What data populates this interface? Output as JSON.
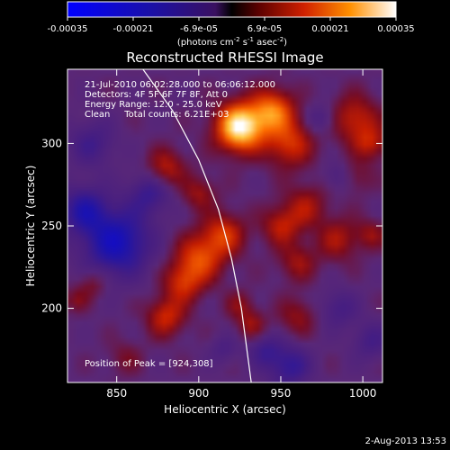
{
  "colorbar": {
    "ticks": [
      "-0.00035",
      "-0.00021",
      "-6.9e-05",
      "6.9e-05",
      "0.00021",
      "0.00035"
    ],
    "units_main": "(photons cm",
    "units_s": " s",
    "units_asec": " asec",
    "units_close": ")",
    "exp_minus2": "-2",
    "exp_minus1": "-1",
    "exp_minus2b": "-2"
  },
  "plot": {
    "title": "Reconstructed RHESSI Image",
    "xlabel": "Heliocentric X (arcsec)",
    "ylabel": "Heliocentric Y (arcsec)",
    "xticks": [
      "850",
      "900",
      "950",
      "1000"
    ],
    "yticks": [
      "200",
      "250",
      "300"
    ],
    "info_lines": [
      "21-Jul-2010 06:02:28.000 to 06:06:12.000",
      "Detectors: 4F 5F 6F 7F 8F, Att 0",
      "Energy Range: 12.0 - 25.0 keV",
      "Clean     Total counts: 6.21E+03"
    ],
    "peak": "Position of Peak = [924,308]"
  },
  "footer": {
    "timestamp": "2-Aug-2013 13:53"
  },
  "colors": {
    "background": "#000000",
    "axis": "#ffffff",
    "limb": "#ffffff"
  },
  "chart_data": {
    "type": "heatmap",
    "title": "Reconstructed RHESSI Image",
    "xlabel": "Heliocentric X (arcsec)",
    "ylabel": "Heliocentric Y (arcsec)",
    "xlim": [
      820,
      1012
    ],
    "ylim": [
      155,
      345
    ],
    "clim": [
      -0.00035,
      0.00035
    ],
    "peak": [
      924,
      308
    ],
    "blobs": [
      {
        "x": 925,
        "y": 310,
        "v": 0.00036,
        "s": 10
      },
      {
        "x": 945,
        "y": 320,
        "v": 0.00022,
        "s": 9
      },
      {
        "x": 955,
        "y": 300,
        "v": 0.00016,
        "s": 10
      },
      {
        "x": 995,
        "y": 315,
        "v": 0.00014,
        "s": 10
      },
      {
        "x": 1005,
        "y": 300,
        "v": 0.00012,
        "s": 7
      },
      {
        "x": 900,
        "y": 230,
        "v": 0.00018,
        "s": 10
      },
      {
        "x": 915,
        "y": 245,
        "v": 0.00016,
        "s": 9
      },
      {
        "x": 890,
        "y": 215,
        "v": 0.00014,
        "s": 8
      },
      {
        "x": 950,
        "y": 250,
        "v": 0.00013,
        "s": 8
      },
      {
        "x": 965,
        "y": 262,
        "v": 0.00011,
        "s": 9
      },
      {
        "x": 985,
        "y": 242,
        "v": 0.00011,
        "s": 9
      },
      {
        "x": 960,
        "y": 228,
        "v": 0.0001,
        "s": 8
      },
      {
        "x": 880,
        "y": 195,
        "v": 0.00015,
        "s": 8
      },
      {
        "x": 932,
        "y": 190,
        "v": 0.0001,
        "s": 6
      },
      {
        "x": 960,
        "y": 195,
        "v": 9e-05,
        "s": 8
      },
      {
        "x": 925,
        "y": 202,
        "v": 8e-05,
        "s": 6
      },
      {
        "x": 880,
        "y": 285,
        "v": 0.00013,
        "s": 8
      },
      {
        "x": 900,
        "y": 270,
        "v": 0.0001,
        "s": 7
      },
      {
        "x": 835,
        "y": 215,
        "v": 8e-05,
        "s": 6
      },
      {
        "x": 825,
        "y": 205,
        "v": 7e-05,
        "s": 5
      },
      {
        "x": 855,
        "y": 170,
        "v": 6e-05,
        "s": 7
      },
      {
        "x": 1005,
        "y": 245,
        "v": 9e-05,
        "s": 6
      },
      {
        "x": 995,
        "y": 280,
        "v": 7e-05,
        "s": 7
      },
      {
        "x": 850,
        "y": 240,
        "v": -0.00022,
        "s": 14
      },
      {
        "x": 830,
        "y": 260,
        "v": -0.00016,
        "s": 10
      },
      {
        "x": 870,
        "y": 270,
        "v": -0.00012,
        "s": 9
      },
      {
        "x": 835,
        "y": 300,
        "v": -0.0001,
        "s": 10
      },
      {
        "x": 955,
        "y": 165,
        "v": -0.00014,
        "s": 9
      },
      {
        "x": 940,
        "y": 175,
        "v": -0.0001,
        "s": 7
      },
      {
        "x": 985,
        "y": 200,
        "v": -9e-05,
        "s": 8
      },
      {
        "x": 985,
        "y": 280,
        "v": -8e-05,
        "s": 6
      },
      {
        "x": 975,
        "y": 315,
        "v": -9e-05,
        "s": 6
      },
      {
        "x": 1005,
        "y": 180,
        "v": -9e-05,
        "s": 8
      },
      {
        "x": 915,
        "y": 175,
        "v": -7e-05,
        "s": 6
      }
    ],
    "limb": [
      [
        866,
        345
      ],
      [
        884,
        320
      ],
      [
        900,
        290
      ],
      [
        912,
        260
      ],
      [
        920,
        230
      ],
      [
        926,
        200
      ],
      [
        930,
        170
      ],
      [
        932,
        155
      ]
    ]
  }
}
